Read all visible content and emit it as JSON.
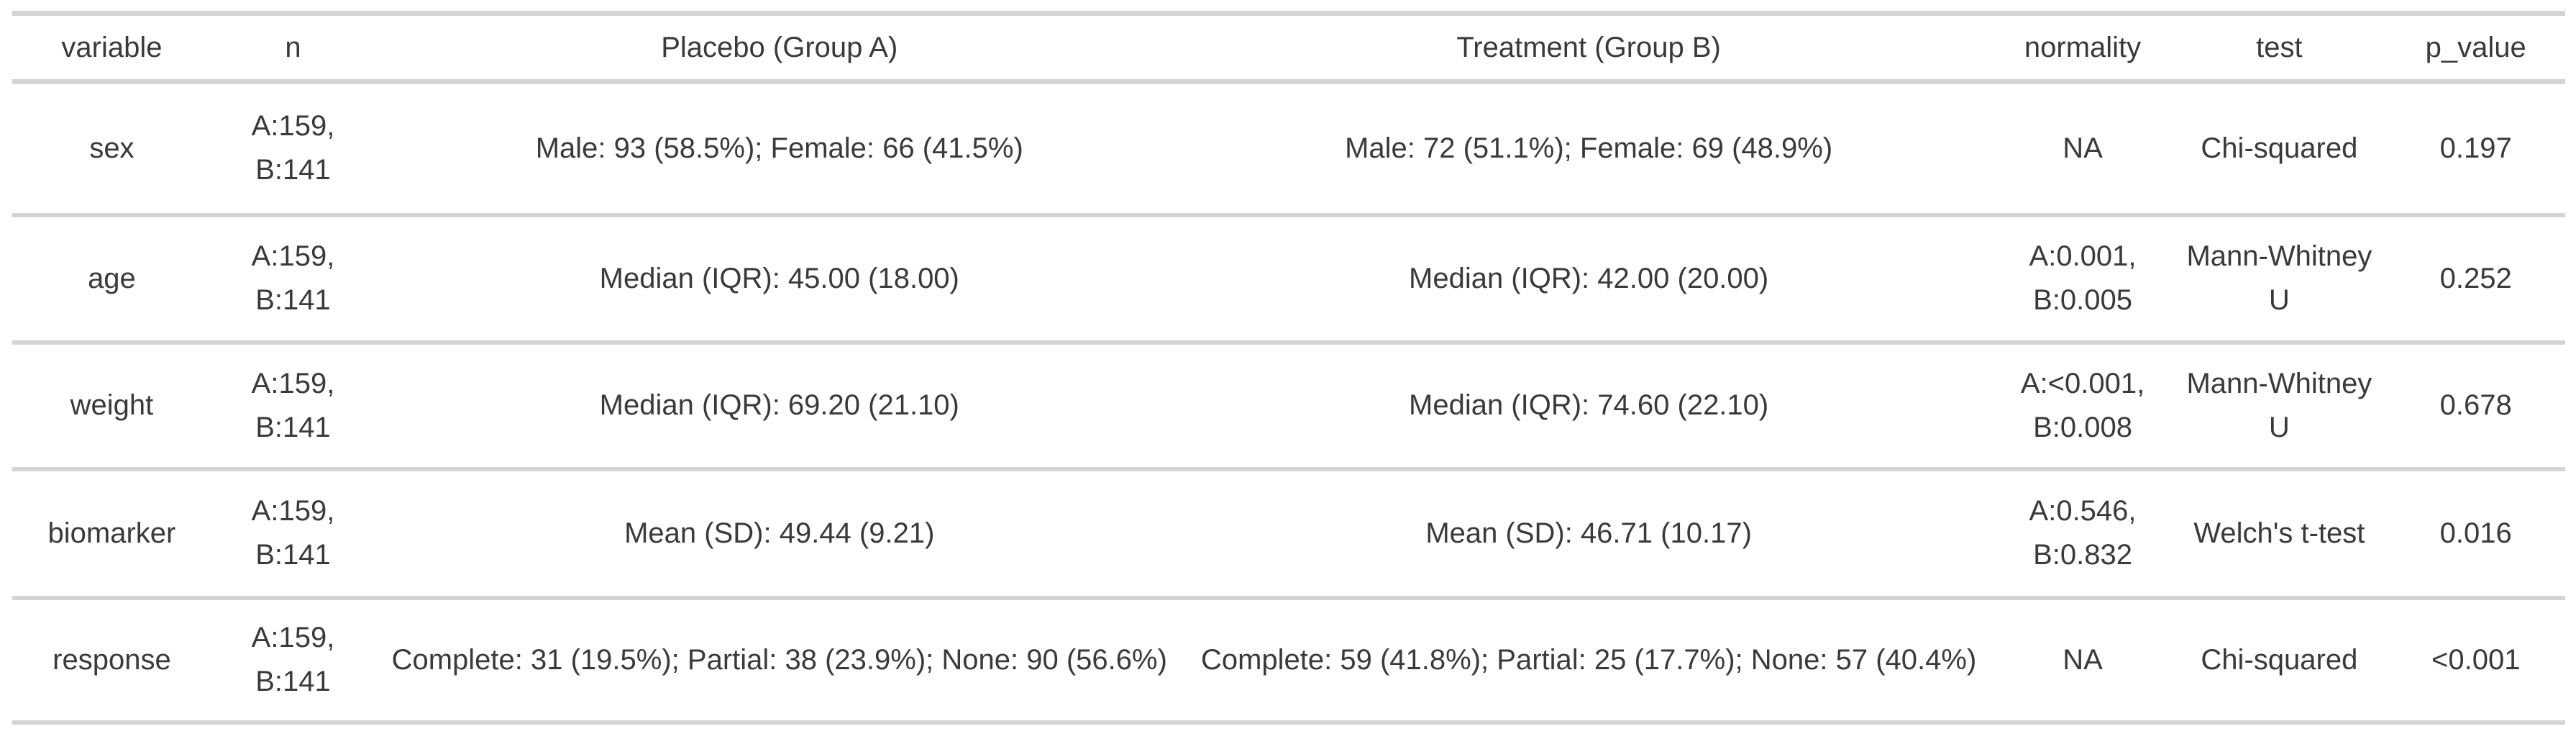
{
  "chart_data": {
    "type": "table",
    "title": "",
    "columns": [
      "variable",
      "n",
      "Placebo (Group A)",
      "Treatment (Group B)",
      "normality",
      "test",
      "p_value"
    ],
    "rows": [
      {
        "variable": "sex",
        "n": "A:159, B:141",
        "placebo": "Male: 93 (58.5%); Female: 66 (41.5%)",
        "treatment": "Male: 72 (51.1%); Female: 69 (48.9%)",
        "normality": "NA",
        "test": "Chi-squared",
        "p_value": "0.197"
      },
      {
        "variable": "age",
        "n": "A:159, B:141",
        "placebo": "Median (IQR): 45.00 (18.00)",
        "treatment": "Median (IQR): 42.00 (20.00)",
        "normality": "A:0.001, B:0.005",
        "test": "Mann-Whitney U",
        "p_value": "0.252"
      },
      {
        "variable": "weight",
        "n": "A:159, B:141",
        "placebo": "Median (IQR): 69.20 (21.10)",
        "treatment": "Median (IQR): 74.60 (22.10)",
        "normality": "A:<0.001, B:0.008",
        "test": "Mann-Whitney U",
        "p_value": "0.678"
      },
      {
        "variable": "biomarker",
        "n": "A:159, B:141",
        "placebo": "Mean (SD): 49.44 (9.21)",
        "treatment": "Mean (SD): 46.71 (10.17)",
        "normality": "A:0.546, B:0.832",
        "test": "Welch's t-test",
        "p_value": "0.016"
      },
      {
        "variable": "response",
        "n": "A:159, B:141",
        "placebo": "Complete: 31 (19.5%); Partial: 38 (23.9%); None: 90 (56.6%)",
        "treatment": "Complete: 59 (41.8%); Partial: 25 (17.7%); None: 57 (40.4%)",
        "normality": "NA",
        "test": "Chi-squared",
        "p_value": "<0.001"
      }
    ],
    "layout": {
      "grid": "horizontal-rules-only",
      "alignment": "center",
      "legend_position": "none"
    }
  },
  "colors": {
    "border": "#d4d4d4",
    "text": "#3a3a3a",
    "background": "#ffffff"
  }
}
